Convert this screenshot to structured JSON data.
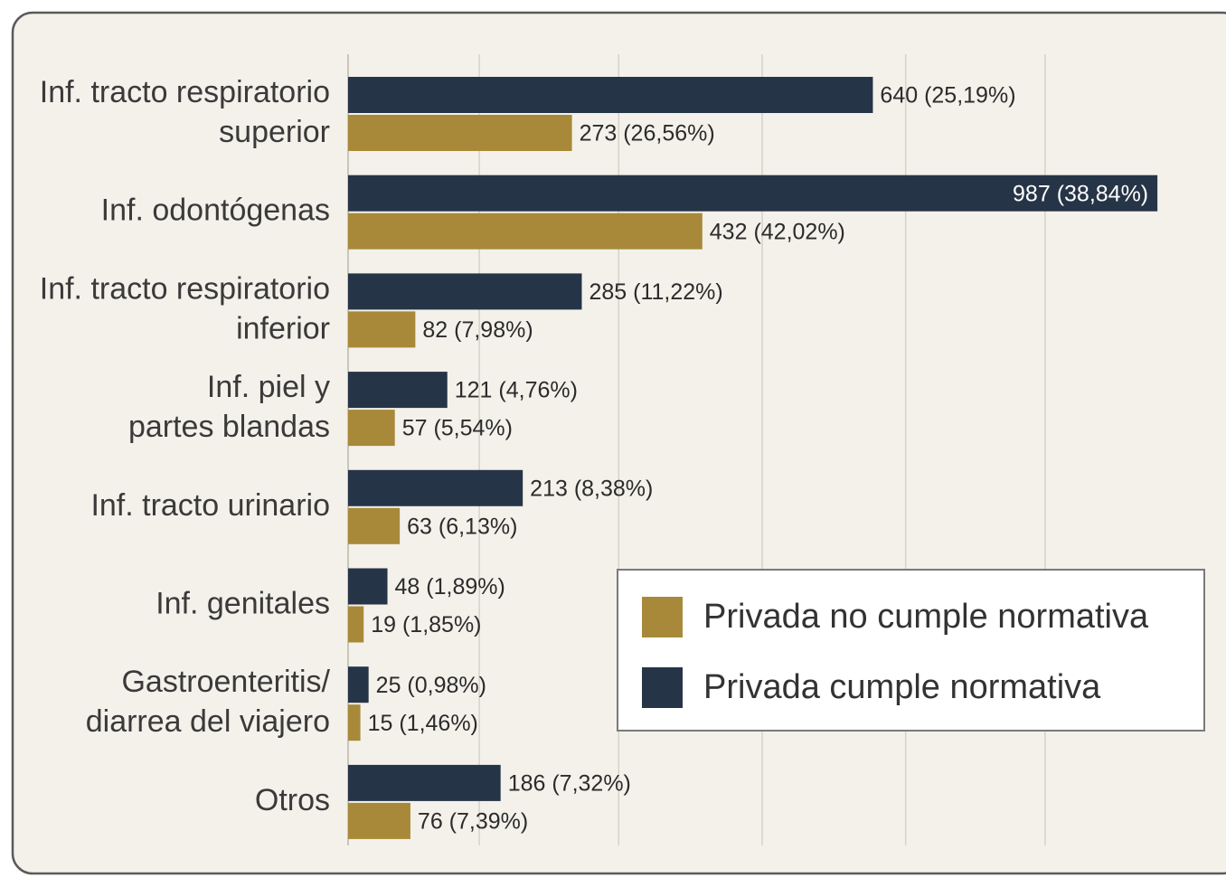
{
  "chart_data": {
    "type": "barh",
    "categories": [
      [
        "Inf. tracto respiratorio",
        "superior"
      ],
      [
        "Inf. odontógenas"
      ],
      [
        "Inf. tracto respiratorio",
        "inferior"
      ],
      [
        "Inf. piel y",
        "partes blandas"
      ],
      [
        "Inf. tracto urinario"
      ],
      [
        "Inf. genitales"
      ],
      [
        "Gastroenteritis/",
        "diarrea del viajero"
      ],
      [
        "Otros"
      ]
    ],
    "series": [
      {
        "name": "Privada cumple normativa",
        "color": "#263447",
        "values": [
          640,
          987,
          285,
          121,
          213,
          48,
          25,
          186
        ],
        "value_labels": [
          "640 (25,19%)",
          "987 (38,84%)",
          "285 (11,22%)",
          "121 (4,76%)",
          "213 (8,38%)",
          "48 (1,89%)",
          "25 (0,98%)",
          "186 (7,32%)"
        ]
      },
      {
        "name": "Privada no cumple normativa",
        "color": "#a8893a",
        "values": [
          273,
          432,
          82,
          57,
          63,
          19,
          15,
          76
        ],
        "value_labels": [
          "273 (26,56%)",
          "432 (42,02%)",
          "82 (7,98%)",
          "57 (5,54%)",
          "63 (6,13%)",
          "19 (1,85%)",
          "15 (1,46%)",
          "76 (7,39%)"
        ]
      }
    ],
    "xlim": [
      0,
      1053
    ],
    "xticks": [
      160,
      330,
      505,
      680,
      850
    ],
    "grid": true,
    "legend": "right"
  }
}
